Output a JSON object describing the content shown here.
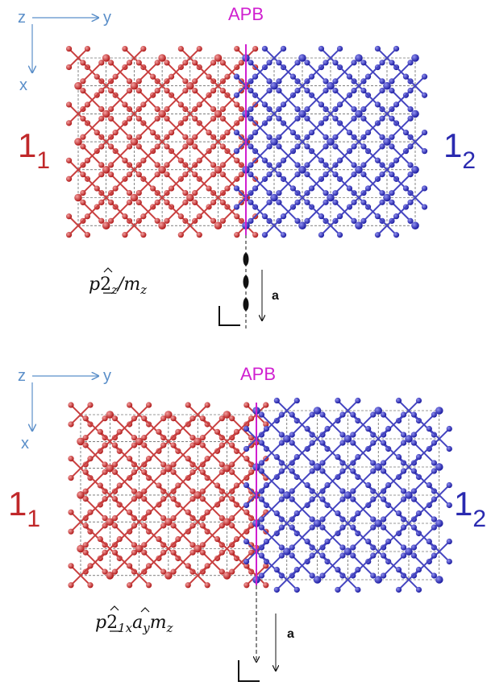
{
  "panels": [
    {
      "axes": {
        "z": "z",
        "y": "y",
        "x": "x"
      },
      "boundary": "APB",
      "left_domain": {
        "main": "1",
        "sub": "1"
      },
      "right_domain": {
        "main": "1",
        "sub": "2"
      },
      "symmetry": {
        "p": "p",
        "op": "2",
        "op_sub": "z",
        "rest": "/m",
        "rest_sub": "z"
      },
      "vector": "a"
    },
    {
      "axes": {
        "z": "z",
        "y": "y",
        "x": "x"
      },
      "boundary": "APB",
      "left_domain": {
        "main": "1",
        "sub": "1"
      },
      "right_domain": {
        "main": "1",
        "sub": "2"
      },
      "symmetry": {
        "p": "p",
        "op": "2",
        "op_sub": "1x",
        "rest": "a",
        "rest_sub": "y",
        "rest2": "m",
        "rest2_sub": "z"
      },
      "vector": "a"
    }
  ]
}
